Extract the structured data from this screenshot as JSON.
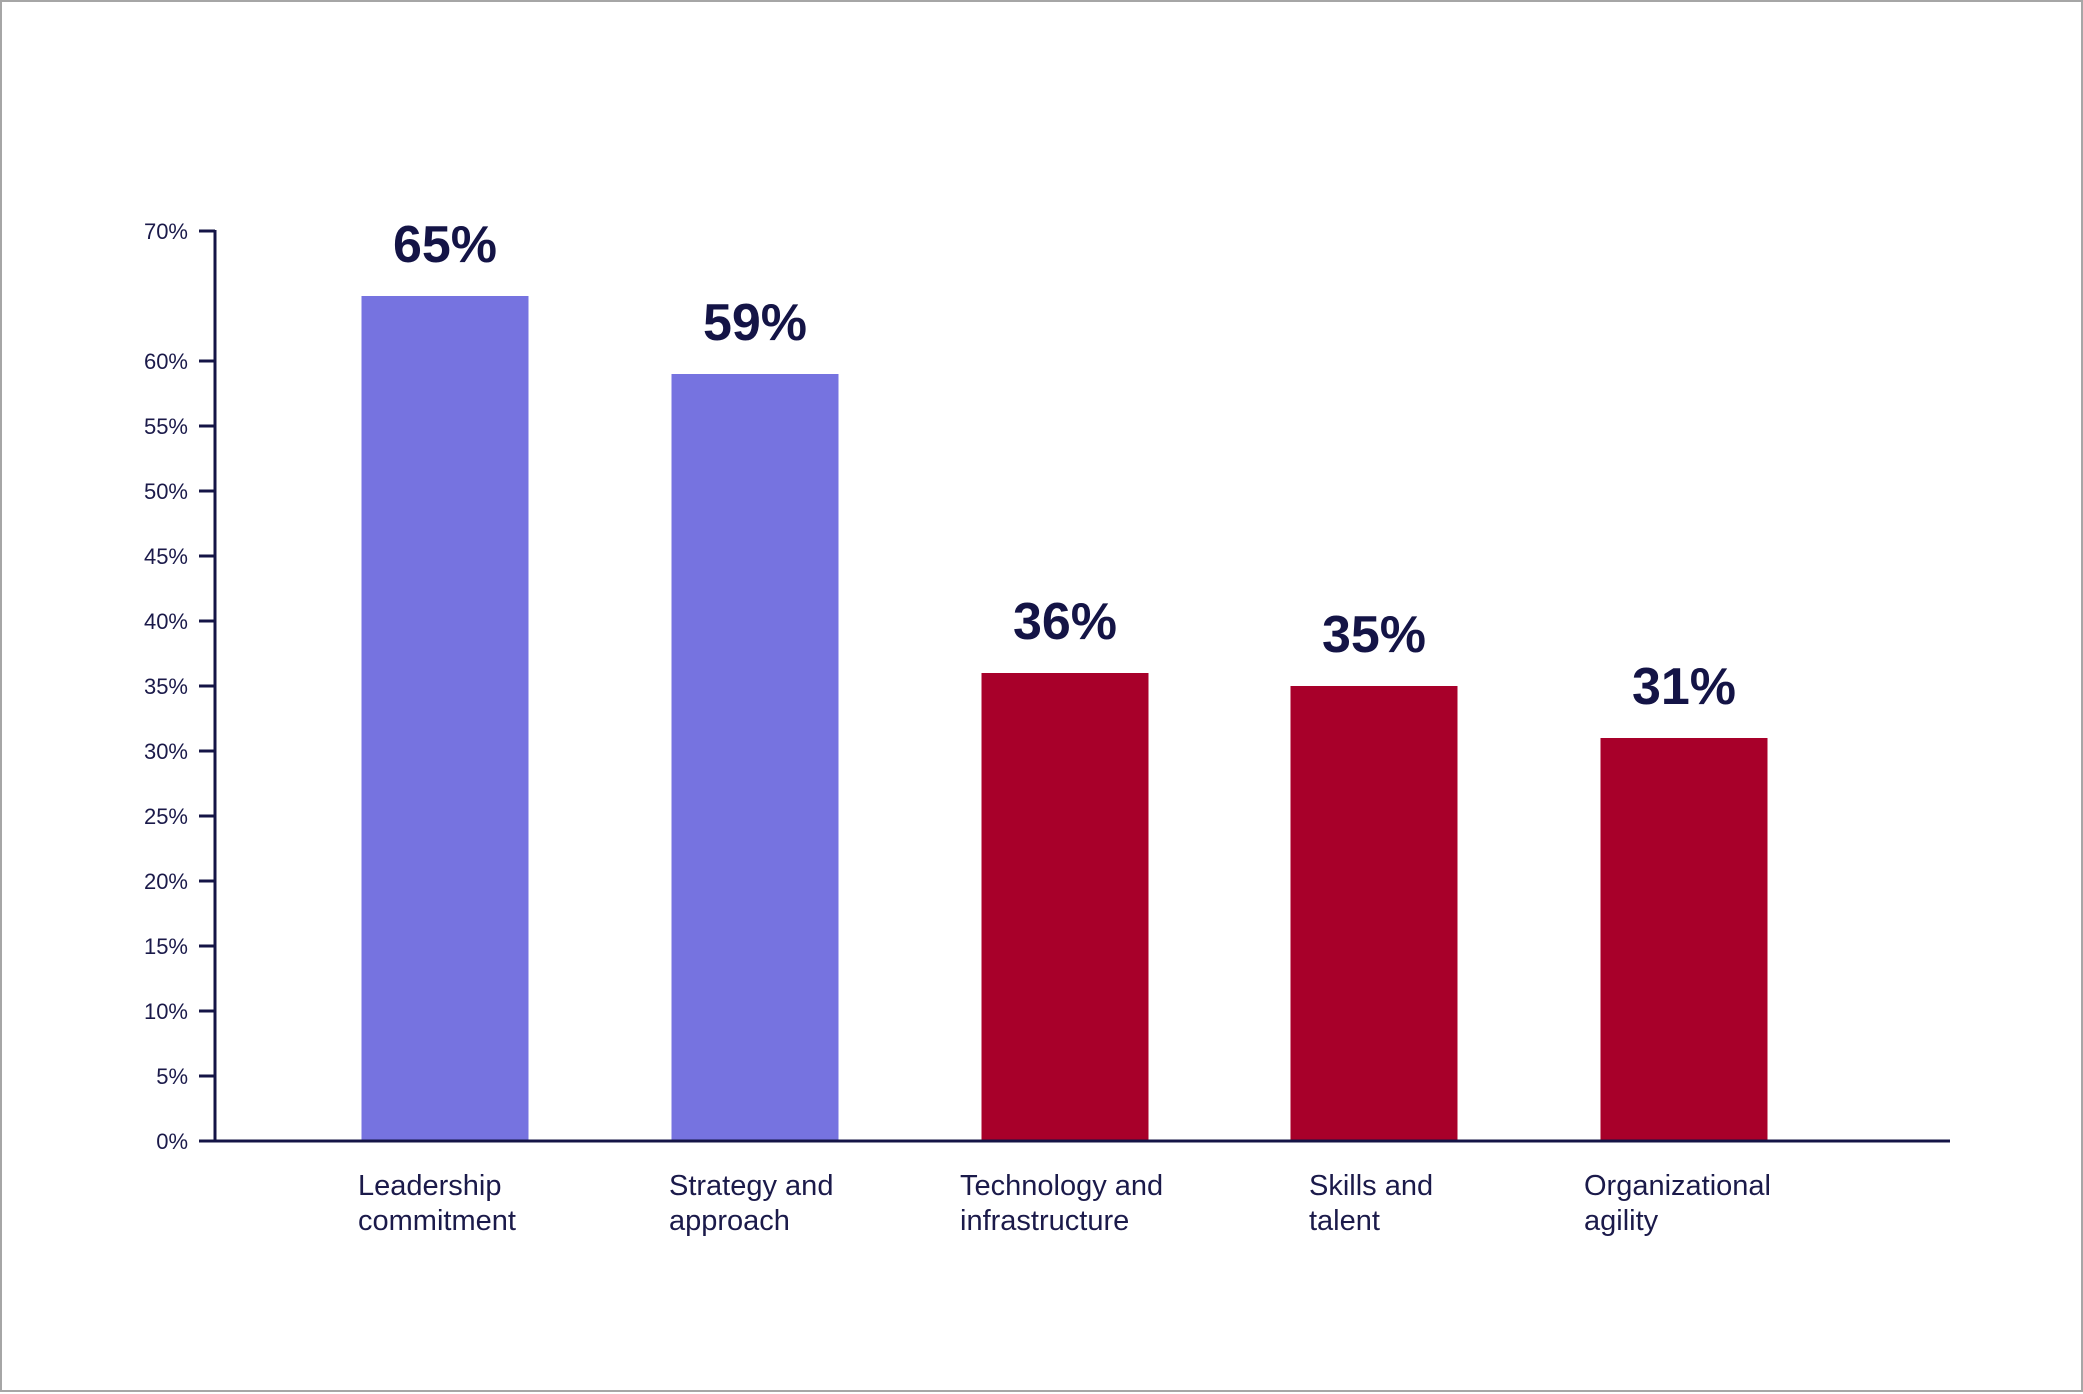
{
  "chart_data": {
    "type": "bar",
    "categories": [
      [
        "Leadership",
        "commitment"
      ],
      [
        "Strategy and",
        "approach"
      ],
      [
        "Technology and",
        "infrastructure"
      ],
      [
        "Skills and",
        "talent"
      ],
      [
        "Organizational",
        "agility"
      ]
    ],
    "values": [
      65,
      59,
      36,
      35,
      31
    ],
    "value_labels": [
      "65%",
      "59%",
      "36%",
      "35%",
      "31%"
    ],
    "bar_colors": [
      "#7673e0",
      "#7673e0",
      "#a8002a",
      "#a8002a",
      "#a8002a"
    ],
    "y_ticks": [
      {
        "value": 0,
        "label": "0%"
      },
      {
        "value": 5,
        "label": "5%"
      },
      {
        "value": 10,
        "label": "10%"
      },
      {
        "value": 15,
        "label": "15%"
      },
      {
        "value": 20,
        "label": "20%"
      },
      {
        "value": 25,
        "label": "25%"
      },
      {
        "value": 30,
        "label": "30%"
      },
      {
        "value": 35,
        "label": "35%"
      },
      {
        "value": 40,
        "label": "40%"
      },
      {
        "value": 45,
        "label": "45%"
      },
      {
        "value": 50,
        "label": "50%"
      },
      {
        "value": 55,
        "label": "55%"
      },
      {
        "value": 60,
        "label": "60%"
      },
      {
        "value": 70,
        "label": "70%"
      }
    ],
    "ylim": [
      0,
      70
    ],
    "title": "",
    "xlabel": "",
    "ylabel": "",
    "grid": false,
    "axis_color": "#141446"
  }
}
